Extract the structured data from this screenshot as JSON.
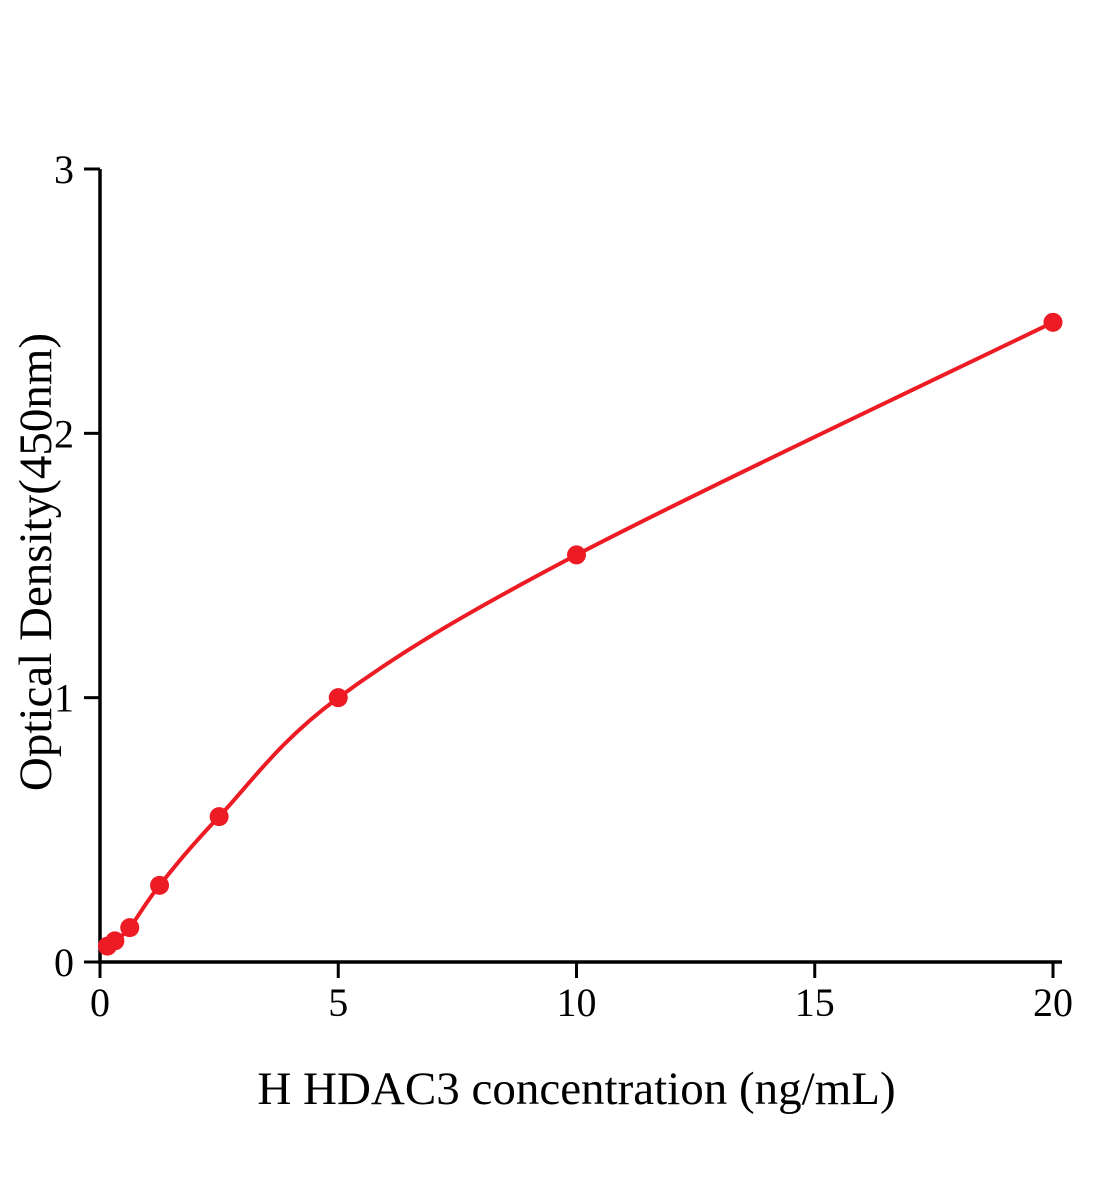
{
  "chart_data": {
    "type": "scatter",
    "title": "",
    "xlabel": "H HDAC3 concentration (ng/mL)",
    "ylabel": "Optical Density(450nm)",
    "xlim": [
      0,
      20
    ],
    "ylim": [
      0,
      3
    ],
    "x_ticks": [
      0,
      5,
      10,
      15,
      20
    ],
    "y_ticks": [
      0,
      1,
      2,
      3
    ],
    "grid": false,
    "legend": "none",
    "curve_color": "#ed1c24",
    "axis_color": "#000000",
    "points": [
      {
        "x": 0.156,
        "y": 0.06
      },
      {
        "x": 0.313,
        "y": 0.08
      },
      {
        "x": 0.625,
        "y": 0.13
      },
      {
        "x": 1.25,
        "y": 0.29
      },
      {
        "x": 2.5,
        "y": 0.55
      },
      {
        "x": 5,
        "y": 1.0
      },
      {
        "x": 10,
        "y": 1.54
      },
      {
        "x": 20,
        "y": 2.42
      }
    ]
  }
}
